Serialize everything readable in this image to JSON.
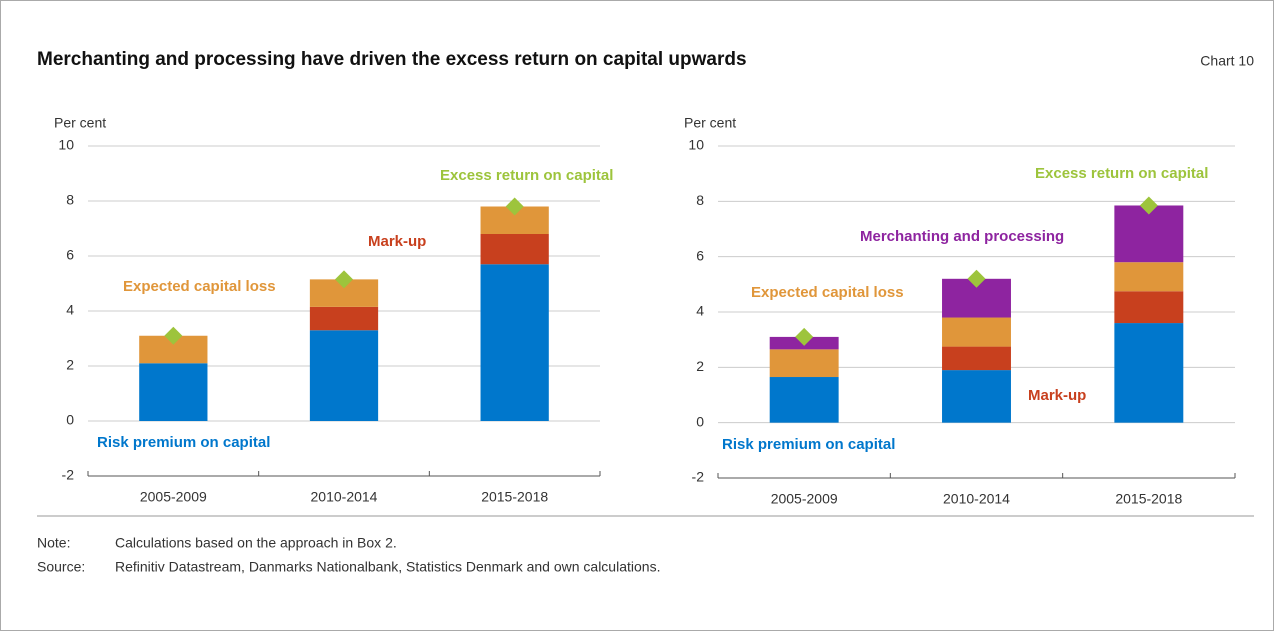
{
  "header": {
    "title": "Merchanting and processing have driven the excess return on capital upwards",
    "chart_label": "Chart 10"
  },
  "chart_data": [
    {
      "type": "bar",
      "stacked": true,
      "y_label": "Per cent",
      "categories": [
        "2005-2009",
        "2010-2014",
        "2015-2018"
      ],
      "series": [
        {
          "name": "Risk premium on capital",
          "color": "#0077cc",
          "values": [
            2.1,
            3.3,
            5.7
          ]
        },
        {
          "name": "Mark-up",
          "color": "#c8401e",
          "values": [
            0,
            0.85,
            1.1
          ]
        },
        {
          "name": "Expected capital loss",
          "color": "#e0963a",
          "values": [
            1.0,
            1.0,
            1.0
          ]
        }
      ],
      "markers": {
        "name": "Excess return on capital",
        "color": "#9dc43c",
        "values": [
          3.1,
          5.15,
          7.8
        ]
      },
      "ylim": [
        -2,
        10
      ],
      "yticks": [
        -2,
        0,
        2,
        4,
        6,
        8,
        10
      ],
      "grid": true
    },
    {
      "type": "bar",
      "stacked": true,
      "y_label": "Per cent",
      "categories": [
        "2005-2009",
        "2010-2014",
        "2015-2018"
      ],
      "series": [
        {
          "name": "Risk premium on capital",
          "color": "#0077cc",
          "values": [
            1.65,
            1.9,
            3.6
          ]
        },
        {
          "name": "Mark-up",
          "color": "#c8401e",
          "values": [
            0,
            0.85,
            1.15
          ]
        },
        {
          "name": "Expected capital loss",
          "color": "#e0963a",
          "values": [
            1.0,
            1.05,
            1.05
          ]
        },
        {
          "name": "Merchanting and processing",
          "color": "#8e24a0",
          "values": [
            0.45,
            1.4,
            2.05
          ]
        }
      ],
      "markers": {
        "name": "Excess return on capital",
        "color": "#9dc43c",
        "values": [
          3.1,
          5.2,
          7.85
        ]
      },
      "ylim": [
        -2,
        10
      ],
      "yticks": [
        -2,
        0,
        2,
        4,
        6,
        8,
        10
      ],
      "grid": true
    }
  ],
  "footer": {
    "note_label": "Note:",
    "note": "Calculations based on the approach in Box 2.",
    "source_label": "Source:",
    "source": "Refinitiv Datastream, Danmarks Nationalbank, Statistics Denmark and own calculations."
  }
}
